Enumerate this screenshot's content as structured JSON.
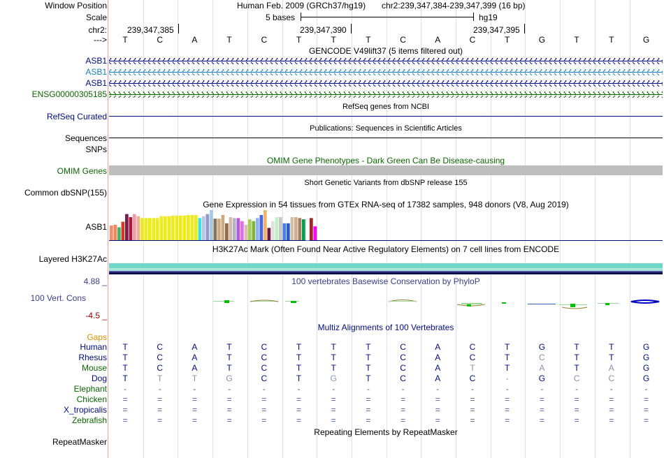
{
  "header": {
    "window_position_label": "Window Position",
    "scale_label": "Scale",
    "chrom_label": "chr2:",
    "strand_label": "--->",
    "assembly": "Human Feb. 2009 (GRCh37/hg19)",
    "coords": "chr2:239,347,384-239,347,399 (16 bp)",
    "scale_text": "5 bases",
    "db": "hg19",
    "ticks": [
      "239,347,385",
      "239,347,390",
      "239,347,395"
    ]
  },
  "bases": [
    "T",
    "C",
    "A",
    "T",
    "C",
    "T",
    "T",
    "T",
    "C",
    "A",
    "C",
    "T",
    "G",
    "T",
    "T",
    "G"
  ],
  "tracks": {
    "gencode": {
      "title": "GENCODE V49lift37 (5 items filtered out)",
      "items": [
        "ASB1",
        "ASB1",
        "ASB1",
        "ENSG00000305185"
      ]
    },
    "refseq": {
      "label": "RefSeq Curated",
      "title": "RefSeq genes from NCBI"
    },
    "pubs": {
      "label": "Sequences",
      "title": "Publications: Sequences in Scientific Articles"
    },
    "snps_label": "SNPs",
    "omim": {
      "label": "OMIM Genes",
      "title": "OMIM Gene Phenotypes - Dark Green Can Be Disease-causing"
    },
    "dbsnp": {
      "label": "Common dbSNP(155)",
      "title": "Short Genetic Variants from dbSNP release 155"
    },
    "gtex": {
      "label": "ASB1",
      "title": "Gene Expression in 54 tissues from GTEx RNA-seq of 17382 samples, 948 donors (V8, Aug 2019)",
      "bars": [
        {
          "v": 0.48,
          "c": "#f58d6a"
        },
        {
          "v": 0.5,
          "c": "#f5845a"
        },
        {
          "v": 0.42,
          "c": "#45b26a"
        },
        {
          "v": 0.6,
          "c": "#d43a26"
        },
        {
          "v": 0.85,
          "c": "#7a1d4a"
        },
        {
          "v": 0.75,
          "c": "#b2163d"
        },
        {
          "v": 0.85,
          "c": "#eaa0a8"
        },
        {
          "v": 0.78,
          "c": "#eeae92"
        },
        {
          "v": 0.72,
          "c": "#edeb1e"
        },
        {
          "v": 0.72,
          "c": "#edeb1e"
        },
        {
          "v": 0.72,
          "c": "#edeb1e"
        },
        {
          "v": 0.72,
          "c": "#edeb1e"
        },
        {
          "v": 0.72,
          "c": "#edeb1e"
        },
        {
          "v": 0.78,
          "c": "#edeb1e"
        },
        {
          "v": 0.78,
          "c": "#edeb1e"
        },
        {
          "v": 0.78,
          "c": "#edeb1e"
        },
        {
          "v": 0.8,
          "c": "#edeb1e"
        },
        {
          "v": 0.8,
          "c": "#edeb1e"
        },
        {
          "v": 0.8,
          "c": "#edeb1e"
        },
        {
          "v": 0.8,
          "c": "#edeb1e"
        },
        {
          "v": 0.82,
          "c": "#edeb1e"
        },
        {
          "v": 0.82,
          "c": "#edeb1e"
        },
        {
          "v": 0.82,
          "c": "#edeb1e"
        },
        {
          "v": 0.72,
          "c": "#3de0e0"
        },
        {
          "v": 0.78,
          "c": "#c0c0e8"
        },
        {
          "v": 0.85,
          "c": "#8c9bc8"
        },
        {
          "v": 0.98,
          "c": "#a6c8e6"
        },
        {
          "v": 0.7,
          "c": "#8a7458"
        },
        {
          "v": 0.7,
          "c": "#ccaa88"
        },
        {
          "v": 0.82,
          "c": "#d0a880"
        },
        {
          "v": 0.55,
          "c": "#8c6e4e"
        },
        {
          "v": 0.75,
          "c": "#d0bca8"
        },
        {
          "v": 0.72,
          "c": "#b4b4c8"
        },
        {
          "v": 0.72,
          "c": "#b45adc"
        },
        {
          "v": 0.62,
          "c": "#e46ee4"
        },
        {
          "v": 0.5,
          "c": "#d8c0b0"
        },
        {
          "v": 0.68,
          "c": "#a8d050"
        },
        {
          "v": 0.62,
          "c": "#7fb040"
        },
        {
          "v": 0.72,
          "c": "#8cb4f0"
        },
        {
          "v": 0.82,
          "c": "#4864e8"
        },
        {
          "v": 0.98,
          "c": "#f0b468"
        },
        {
          "v": 0.4,
          "c": "#6c1a3c"
        },
        {
          "v": 0.62,
          "c": "#e0e0e0"
        },
        {
          "v": 0.75,
          "c": "#c0f0c0"
        },
        {
          "v": 0.75,
          "c": "#c8c8c8"
        },
        {
          "v": 0.55,
          "c": "#4a7fe8"
        },
        {
          "v": 0.55,
          "c": "#2a5cc8"
        },
        {
          "v": 0.75,
          "c": "#d8c0a4"
        },
        {
          "v": 0.75,
          "c": "#d0b090"
        },
        {
          "v": 0.72,
          "c": "#a08060"
        },
        {
          "v": 0.68,
          "c": "#00a050"
        },
        {
          "v": 0.68,
          "c": "#ffffff"
        },
        {
          "v": 0.72,
          "c": "#a02828"
        },
        {
          "v": 0.45,
          "c": "#ff00ff"
        }
      ]
    },
    "h3k27ac": {
      "label": "Layered H3K27Ac",
      "title": "H3K27Ac Mark (Often Found Near Active Regulatory Elements) on 7 cell lines from ENCODE"
    },
    "phylop": {
      "label": "100 Vert. Cons",
      "max": "4.88 _",
      "min": "-4.5 _",
      "title": "100 vertebrates Basewise Conservation by PhyloP"
    },
    "multiz": {
      "title": "Multiz Alignments of 100 Vertebrates",
      "gaps_label": "Gaps",
      "species": [
        {
          "name": "Human",
          "bases": [
            "T",
            "C",
            "A",
            "T",
            "C",
            "T",
            "T",
            "T",
            "C",
            "A",
            "C",
            "T",
            "G",
            "T",
            "T",
            "G"
          ]
        },
        {
          "name": "Rhesus",
          "bases": [
            "T",
            "C",
            "A",
            "T",
            "C",
            "T",
            "T",
            "T",
            "C",
            "A",
            "C",
            "T",
            "C",
            "T",
            "T",
            "G"
          ]
        },
        {
          "name": "Mouse",
          "bases": [
            "T",
            "C",
            "A",
            "T",
            "C",
            "T",
            "T",
            "T",
            "C",
            "A",
            "T",
            "T",
            "A",
            "T",
            "A",
            "G"
          ]
        },
        {
          "name": "Dog",
          "bases": [
            "T",
            "T",
            "T",
            "G",
            "C",
            "T",
            "G",
            "T",
            "C",
            "A",
            "C",
            "-",
            "G",
            "C",
            "C",
            "G"
          ]
        },
        {
          "name": "Elephant",
          "bases": [
            "-",
            "-",
            "-",
            "-",
            "-",
            "-",
            "-",
            "-",
            "-",
            "-",
            "-",
            "-",
            "-",
            "-",
            "-",
            "-"
          ]
        },
        {
          "name": "Chicken",
          "bases": [
            "=",
            "=",
            "=",
            "=",
            "=",
            "=",
            "=",
            "=",
            "=",
            "=",
            "=",
            "=",
            "=",
            "=",
            "=",
            "="
          ]
        },
        {
          "name": "X_tropicalis",
          "bases": [
            "=",
            "=",
            "=",
            "=",
            "=",
            "=",
            "=",
            "=",
            "=",
            "=",
            "=",
            "=",
            "=",
            "=",
            "=",
            "="
          ]
        },
        {
          "name": "Zebrafish",
          "bases": [
            "=",
            "=",
            "=",
            "=",
            "=",
            "=",
            "=",
            "=",
            "=",
            "=",
            "=",
            "=",
            "=",
            "=",
            "=",
            "="
          ]
        }
      ]
    },
    "repeatmasker": {
      "label": "RepeatMasker",
      "title": "Repeating Elements by RepeatMasker"
    }
  }
}
